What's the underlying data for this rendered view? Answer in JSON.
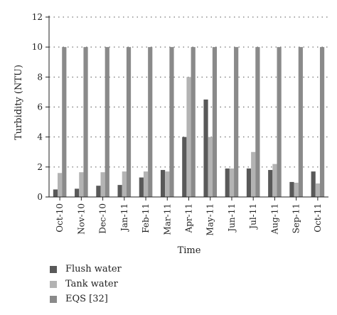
{
  "chart_data": {
    "type": "bar",
    "title": "",
    "xlabel": "Time",
    "ylabel": "Turbidity (NTU)",
    "ylim": [
      0,
      12
    ],
    "yticks": [
      0,
      2,
      4,
      6,
      8,
      10,
      12
    ],
    "grid": "horizontal dotted",
    "legend_position": "bottom-left",
    "categories": [
      "Oct-10",
      "Nov-10",
      "Dec-10",
      "Jan-11",
      "Feb-11",
      "Mar-11",
      "Apr-11",
      "May-11",
      "Jun-11",
      "Jul-11",
      "Aug-11",
      "Sep-11",
      "Oct-11"
    ],
    "series": [
      {
        "name": "Flush water",
        "color": "#595959",
        "values": [
          0.5,
          0.55,
          0.75,
          0.8,
          1.3,
          1.8,
          4.0,
          6.5,
          1.9,
          1.9,
          1.8,
          1.0,
          1.7
        ]
      },
      {
        "name": "Tank water",
        "color": "#b3b3b3",
        "values": [
          1.6,
          1.65,
          1.65,
          1.7,
          1.7,
          1.7,
          8.0,
          4.0,
          1.9,
          3.0,
          2.2,
          0.95,
          0.9
        ]
      },
      {
        "name": "EQS [32]",
        "color": "#8a8a8a",
        "values": [
          10,
          10,
          10,
          10,
          10,
          10,
          10,
          10,
          10,
          10,
          10,
          10,
          10
        ]
      }
    ]
  }
}
